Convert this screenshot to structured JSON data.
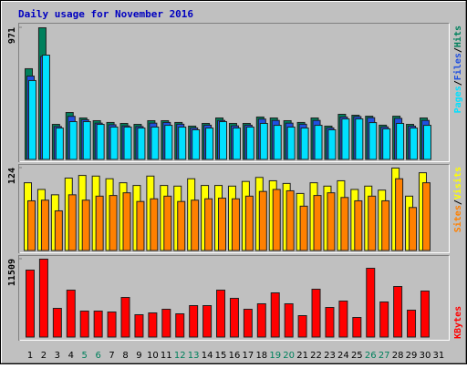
{
  "title": "Daily usage for November 2016",
  "chart_data": [
    {
      "type": "bar",
      "separator": "/",
      "ylim": [
        0,
        971
      ],
      "yticks": [
        971
      ],
      "grid": false,
      "series": [
        {
          "name": "Hits",
          "color": "#00805c",
          "values": [
            670,
            971,
            261,
            348,
            308,
            288,
            275,
            268,
            261,
            288,
            288,
            275,
            248,
            268,
            308,
            268,
            268,
            315,
            308,
            288,
            275,
            308,
            248,
            335,
            328,
            321,
            255,
            321,
            261,
            308,
            null
          ]
        },
        {
          "name": "Files",
          "color": "#2050e0",
          "values": [
            616,
            760,
            245,
            320,
            295,
            270,
            258,
            250,
            245,
            270,
            275,
            262,
            235,
            255,
            290,
            250,
            255,
            300,
            290,
            270,
            262,
            290,
            235,
            315,
            318,
            310,
            242,
            305,
            248,
            290,
            null
          ]
        },
        {
          "name": "Pages",
          "color": "#00e0ff",
          "values": [
            583,
            770,
            234,
            281,
            281,
            261,
            241,
            241,
            234,
            241,
            254,
            241,
            221,
            234,
            281,
            234,
            241,
            268,
            254,
            241,
            234,
            254,
            221,
            301,
            301,
            274,
            228,
            268,
            234,
            254,
            null
          ]
        }
      ]
    },
    {
      "type": "bar",
      "separator": "/",
      "ylim": [
        0,
        124
      ],
      "yticks": [
        124
      ],
      "grid": false,
      "series": [
        {
          "name": "Visits",
          "color": "#ffff00",
          "values": [
            102,
            92,
            84,
            109,
            113,
            112,
            108,
            102,
            98,
            112,
            98,
            97,
            108,
            98,
            98,
            97,
            104,
            110,
            105,
            101,
            86,
            102,
            97,
            105,
            92,
            97,
            91,
            124,
            82,
            117,
            null
          ]
        },
        {
          "name": "Sites",
          "color": "#ff8000",
          "values": [
            75,
            76,
            60,
            84,
            76,
            82,
            83,
            87,
            74,
            78,
            82,
            74,
            76,
            78,
            79,
            78,
            82,
            89,
            92,
            90,
            67,
            83,
            87,
            80,
            75,
            82,
            75,
            108,
            65,
            102,
            null
          ]
        }
      ]
    },
    {
      "type": "bar",
      "ylim": [
        0,
        11509
      ],
      "yticks": [
        11509
      ],
      "grid": false,
      "categories": [
        "1",
        "2",
        "3",
        "4",
        "5",
        "6",
        "7",
        "8",
        "9",
        "10",
        "11",
        "12",
        "13",
        "14",
        "15",
        "16",
        "17",
        "18",
        "19",
        "20",
        "21",
        "22",
        "23",
        "24",
        "25",
        "26",
        "27",
        "28",
        "29",
        "30",
        "31"
      ],
      "category_colors": [
        "#000000",
        "#000000",
        "#000000",
        "#000000",
        "#00805c",
        "#00805c",
        "#000000",
        "#000000",
        "#000000",
        "#000000",
        "#000000",
        "#00805c",
        "#00805c",
        "#000000",
        "#000000",
        "#000000",
        "#000000",
        "#000000",
        "#00805c",
        "#00805c",
        "#000000",
        "#000000",
        "#000000",
        "#000000",
        "#000000",
        "#00805c",
        "#00805c",
        "#000000",
        "#000000",
        "#000000",
        "#000000"
      ],
      "series": [
        {
          "name": "KBytes",
          "color": "#ff0000",
          "values": [
            9903,
            11509,
            4282,
            6959,
            3881,
            3881,
            3747,
            5888,
            3346,
            3613,
            4149,
            3480,
            4684,
            4684,
            6959,
            5755,
            4149,
            4952,
            6558,
            4952,
            3212,
            7093,
            4416,
            5353,
            2944,
            10171,
            5219,
            7494,
            4015,
            6825,
            null
          ]
        }
      ]
    }
  ]
}
